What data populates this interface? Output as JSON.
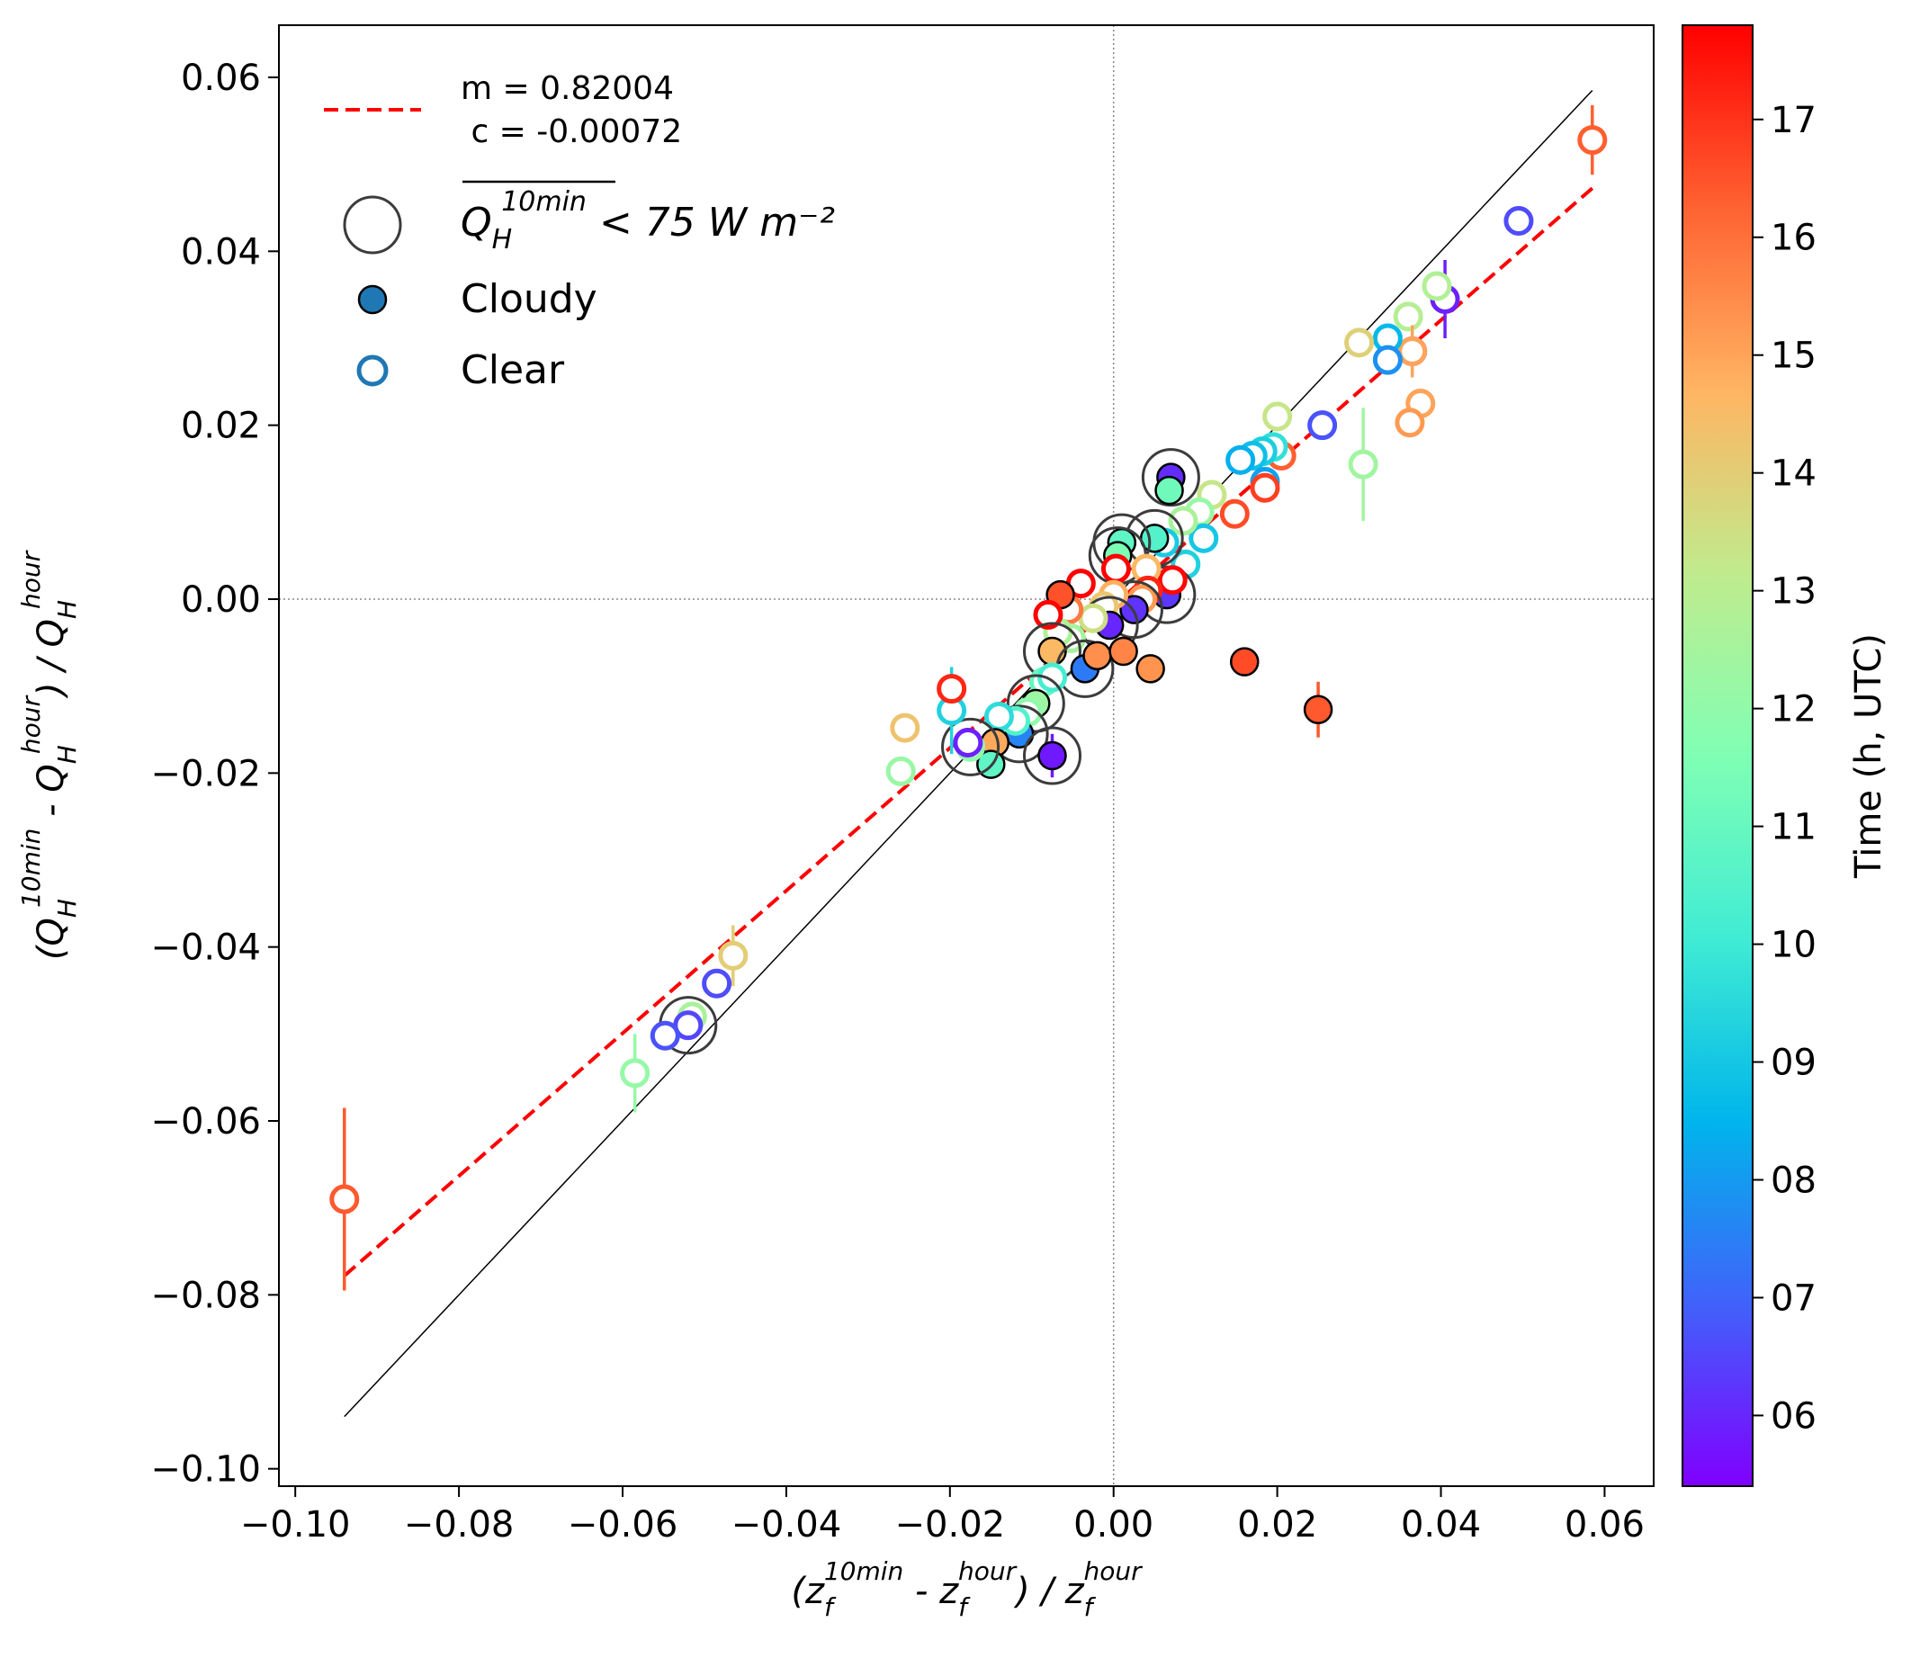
{
  "chart_data": {
    "type": "scatter",
    "xlabel": "(z_f^10min - z_f^hour) / z_f^hour",
    "ylabel": "(Q_H^10min - Q_H^hour) / Q_H^hour",
    "xlabel_parts": {
      "open": "(z",
      "sub": "f",
      "sup": "10min",
      "mid": " - z",
      "sub2": "f",
      "sup2": "hour",
      "close": ") / z",
      "sub3": "f",
      "sup3": "hour"
    },
    "ylabel_parts": {
      "open": "(Q",
      "sub": "H",
      "sup": "10min",
      "mid": " - Q",
      "sub2": "H",
      "sup2": "hour",
      "close": ") / Q",
      "sub3": "H",
      "sup3": "hour"
    },
    "xlim": [
      -0.102,
      0.066
    ],
    "ylim": [
      -0.102,
      0.066
    ],
    "xticks": [
      -0.1,
      -0.08,
      -0.06,
      -0.04,
      -0.02,
      0.0,
      0.02,
      0.04,
      0.06
    ],
    "yticks": [
      -0.1,
      -0.08,
      -0.06,
      -0.04,
      -0.02,
      0.0,
      0.02,
      0.04,
      0.06
    ],
    "xtick_labels": [
      "−0.10",
      "−0.08",
      "−0.06",
      "−0.04",
      "−0.02",
      "0.00",
      "0.02",
      "0.04",
      "0.06"
    ],
    "ytick_labels": [
      "−0.10",
      "−0.08",
      "−0.06",
      "−0.04",
      "−0.02",
      "0.00",
      "0.02",
      "0.04",
      "0.06"
    ],
    "fit": {
      "m": 0.82004,
      "c": -0.00072,
      "x_range": [
        -0.094,
        0.0585
      ],
      "color": "#ff0000"
    },
    "one_to_one": {
      "x_range": [
        -0.094,
        0.0585
      ],
      "color": "#000000"
    },
    "zero_lines": true,
    "legend": {
      "placement": "top-left",
      "fit_label_line1": "m = 0.82004",
      "fit_label_line2": " c = -0.00072",
      "low_flux_label": "< 75 W m⁻²",
      "low_flux_symbol": "Q",
      "low_flux_sub": "H",
      "low_flux_sup": "10min",
      "cloudy_label": "Cloudy",
      "clear_label": "Clear"
    },
    "colorbar": {
      "label": "Time (h, UTC)",
      "range": [
        5.4,
        17.8
      ],
      "ticks": [
        6,
        7,
        8,
        9,
        10,
        11,
        12,
        13,
        14,
        15,
        16,
        17
      ],
      "tick_labels": [
        "06",
        "07",
        "08",
        "09",
        "10",
        "11",
        "12",
        "13",
        "14",
        "15",
        "16",
        "17"
      ],
      "colormap": "rainbow"
    },
    "points": [
      {
        "x": -0.094,
        "y": -0.069,
        "t": 16.4,
        "cloudy": false,
        "err": 0.0105,
        "low": false
      },
      {
        "x": 0.0585,
        "y": 0.0528,
        "t": 16.3,
        "cloudy": false,
        "err": 0.004,
        "low": false
      },
      {
        "x": 0.0495,
        "y": 0.0435,
        "t": 6.6,
        "cloudy": false,
        "err": 0,
        "low": false
      },
      {
        "x": 0.0405,
        "y": 0.0345,
        "t": 5.9,
        "cloudy": false,
        "err": 0.0045,
        "low": false
      },
      {
        "x": 0.0395,
        "y": 0.036,
        "t": 12.8,
        "cloudy": false,
        "err": 0,
        "low": false
      },
      {
        "x": 0.036,
        "y": 0.0325,
        "t": 12.9,
        "cloudy": false,
        "err": 0,
        "low": false
      },
      {
        "x": 0.0365,
        "y": 0.0285,
        "t": 5.8,
        "cloudy": false,
        "err": 0,
        "low": false
      },
      {
        "x": 0.0365,
        "y": 0.0285,
        "t": 15.0,
        "cloudy": false,
        "err": 0.003,
        "low": false
      },
      {
        "x": 0.0335,
        "y": 0.03,
        "t": 8.6,
        "cloudy": false,
        "err": 0,
        "low": false
      },
      {
        "x": 0.0335,
        "y": 0.0275,
        "t": 7.8,
        "cloudy": false,
        "err": 0,
        "low": false
      },
      {
        "x": 0.03,
        "y": 0.0295,
        "t": 13.9,
        "cloudy": false,
        "err": 0,
        "low": false
      },
      {
        "x": 0.0375,
        "y": 0.0225,
        "t": 15.0,
        "cloudy": false,
        "err": 0,
        "low": false
      },
      {
        "x": 0.0362,
        "y": 0.0203,
        "t": 15.2,
        "cloudy": false,
        "err": 0,
        "low": false
      },
      {
        "x": 0.0255,
        "y": 0.02,
        "t": 6.7,
        "cloudy": false,
        "err": 0,
        "low": false
      },
      {
        "x": 0.02,
        "y": 0.021,
        "t": 13.3,
        "cloudy": false,
        "err": 0,
        "low": false
      },
      {
        "x": 0.0305,
        "y": 0.0155,
        "t": 12.4,
        "cloudy": false,
        "err": 0.0065,
        "low": false
      },
      {
        "x": 0.0205,
        "y": 0.0165,
        "t": 16.3,
        "cloudy": false,
        "err": 0,
        "low": false
      },
      {
        "x": 0.0195,
        "y": 0.0175,
        "t": 9.7,
        "cloudy": false,
        "err": 0,
        "low": false
      },
      {
        "x": 0.0182,
        "y": 0.017,
        "t": 9.2,
        "cloudy": false,
        "err": 0,
        "low": false
      },
      {
        "x": 0.017,
        "y": 0.0165,
        "t": 8.8,
        "cloudy": false,
        "err": 0,
        "low": false
      },
      {
        "x": 0.0155,
        "y": 0.016,
        "t": 8.4,
        "cloudy": false,
        "err": 0,
        "low": false
      },
      {
        "x": 0.0185,
        "y": 0.0135,
        "t": 8.1,
        "cloudy": false,
        "err": 0,
        "low": false
      },
      {
        "x": 0.0185,
        "y": 0.0128,
        "t": 16.8,
        "cloudy": false,
        "err": 0,
        "low": false
      },
      {
        "x": 0.0148,
        "y": 0.0098,
        "t": 16.6,
        "cloudy": false,
        "err": 0,
        "low": false
      },
      {
        "x": 0.012,
        "y": 0.012,
        "t": 13.3,
        "cloudy": false,
        "err": 0,
        "low": false
      },
      {
        "x": 0.0105,
        "y": 0.01,
        "t": 12.2,
        "cloudy": false,
        "err": 0,
        "low": false
      },
      {
        "x": 0.011,
        "y": 0.007,
        "t": 9.0,
        "cloudy": false,
        "err": 0,
        "low": false
      },
      {
        "x": 0.0085,
        "y": 0.009,
        "t": 12.6,
        "cloudy": false,
        "err": 0,
        "low": false
      },
      {
        "x": 0.0088,
        "y": 0.004,
        "t": 9.3,
        "cloudy": false,
        "err": 0,
        "low": false
      },
      {
        "x": 0.007,
        "y": 0.014,
        "t": 6.1,
        "cloudy": true,
        "err": 0,
        "low": true
      },
      {
        "x": 0.0068,
        "y": 0.0125,
        "t": 11.2,
        "cloudy": true,
        "err": 0,
        "low": false
      },
      {
        "x": 0.0062,
        "y": 0.0065,
        "t": 9.1,
        "cloudy": false,
        "err": 0,
        "low": false
      },
      {
        "x": 0.005,
        "y": 0.007,
        "t": 10.5,
        "cloudy": true,
        "err": 0,
        "low": true
      },
      {
        "x": 0.001,
        "y": 0.0065,
        "t": 10.8,
        "cloudy": true,
        "err": 0,
        "low": true
      },
      {
        "x": 0.0005,
        "y": 0.005,
        "t": 11.5,
        "cloudy": true,
        "err": 0,
        "low": true
      },
      {
        "x": 0.0065,
        "y": 0.0005,
        "t": 6.3,
        "cloudy": true,
        "err": 0,
        "low": true
      },
      {
        "x": 0.0072,
        "y": 0.0022,
        "t": 17.7,
        "cloudy": false,
        "err": 0,
        "low": false
      },
      {
        "x": 0.004,
        "y": 0.0035,
        "t": 14.6,
        "cloudy": false,
        "err": 0,
        "low": false
      },
      {
        "x": 0.0042,
        "y": 0.001,
        "t": 17.2,
        "cloudy": false,
        "err": 0,
        "low": false
      },
      {
        "x": 0.0035,
        "y": 0.0,
        "t": 15.2,
        "cloudy": false,
        "err": 0,
        "low": false
      },
      {
        "x": 0.0025,
        "y": -0.0012,
        "t": 6.2,
        "cloudy": true,
        "err": 0,
        "low": true
      },
      {
        "x": 0.0003,
        "y": 0.0035,
        "t": 17.8,
        "cloudy": false,
        "err": 0,
        "low": false
      },
      {
        "x": 0.0,
        "y": 0.0005,
        "t": 14.8,
        "cloudy": false,
        "err": 0,
        "low": false
      },
      {
        "x": -0.0012,
        "y": -0.0008,
        "t": 14.2,
        "cloudy": false,
        "err": 0,
        "low": false
      },
      {
        "x": -0.0005,
        "y": -0.003,
        "t": 6.0,
        "cloudy": true,
        "err": 0,
        "low": true
      },
      {
        "x": -0.0025,
        "y": -0.0022,
        "t": 13.5,
        "cloudy": false,
        "err": 0,
        "low": false
      },
      {
        "x": -0.004,
        "y": 0.0018,
        "t": 17.8,
        "cloudy": false,
        "err": 0,
        "low": false
      },
      {
        "x": -0.0055,
        "y": -0.0012,
        "t": 15.8,
        "cloudy": false,
        "err": 0,
        "low": false
      },
      {
        "x": -0.0065,
        "y": 0.0005,
        "t": 16.5,
        "cloudy": true,
        "err": 0,
        "low": false
      },
      {
        "x": -0.0052,
        "y": -0.0045,
        "t": 12.5,
        "cloudy": false,
        "err": 0,
        "low": false
      },
      {
        "x": -0.0068,
        "y": -0.0038,
        "t": 12.7,
        "cloudy": false,
        "err": 0,
        "low": false
      },
      {
        "x": -0.008,
        "y": -0.0018,
        "t": 17.8,
        "cloudy": false,
        "err": 0,
        "low": false
      },
      {
        "x": -0.0075,
        "y": -0.006,
        "t": 14.6,
        "cloudy": true,
        "err": 0,
        "low": true
      },
      {
        "x": -0.0035,
        "y": -0.008,
        "t": 7.4,
        "cloudy": true,
        "err": 0,
        "low": true
      },
      {
        "x": -0.002,
        "y": -0.0065,
        "t": 15.4,
        "cloudy": true,
        "err": 0,
        "low": false
      },
      {
        "x": 0.0012,
        "y": -0.006,
        "t": 15.6,
        "cloudy": true,
        "err": 0,
        "low": false
      },
      {
        "x": 0.0045,
        "y": -0.008,
        "t": 15.3,
        "cloudy": true,
        "err": 0,
        "low": false
      },
      {
        "x": -0.0085,
        "y": -0.0095,
        "t": 11.0,
        "cloudy": false,
        "err": 0,
        "low": false
      },
      {
        "x": -0.0075,
        "y": -0.009,
        "t": 10.2,
        "cloudy": false,
        "err": 0,
        "low": false
      },
      {
        "x": -0.0095,
        "y": -0.012,
        "t": 12.3,
        "cloudy": true,
        "err": 0,
        "low": true
      },
      {
        "x": -0.0105,
        "y": -0.013,
        "t": 12.0,
        "cloudy": false,
        "err": 0,
        "low": false
      },
      {
        "x": -0.0115,
        "y": -0.0155,
        "t": 7.6,
        "cloudy": true,
        "err": 0,
        "low": true
      },
      {
        "x": -0.012,
        "y": -0.014,
        "t": 10.5,
        "cloudy": false,
        "err": 0,
        "low": false
      },
      {
        "x": -0.014,
        "y": -0.0135,
        "t": 9.6,
        "cloudy": false,
        "err": 0,
        "low": false
      },
      {
        "x": -0.0145,
        "y": -0.0165,
        "t": 14.9,
        "cloudy": true,
        "err": 0,
        "low": false
      },
      {
        "x": -0.015,
        "y": -0.019,
        "t": 10.8,
        "cloudy": true,
        "err": 0,
        "low": false
      },
      {
        "x": -0.0175,
        "y": -0.017,
        "t": 12.0,
        "cloudy": false,
        "err": 0,
        "low": true
      },
      {
        "x": -0.0178,
        "y": -0.0165,
        "t": 5.9,
        "cloudy": false,
        "err": 0,
        "low": false
      },
      {
        "x": -0.0075,
        "y": -0.018,
        "t": 5.8,
        "cloudy": true,
        "err": 0.0025,
        "low": true
      },
      {
        "x": -0.0198,
        "y": -0.0128,
        "t": 9.3,
        "cloudy": false,
        "err": 0.005,
        "low": false
      },
      {
        "x": -0.0198,
        "y": -0.0103,
        "t": 17.2,
        "cloudy": false,
        "err": 0,
        "low": false
      },
      {
        "x": -0.0255,
        "y": -0.0148,
        "t": 14.3,
        "cloudy": false,
        "err": 0,
        "low": false
      },
      {
        "x": -0.026,
        "y": -0.0198,
        "t": 12.2,
        "cloudy": false,
        "err": 0,
        "low": false
      },
      {
        "x": -0.0465,
        "y": -0.041,
        "t": 14.0,
        "cloudy": false,
        "err": 0.0035,
        "low": false
      },
      {
        "x": -0.0485,
        "y": -0.0442,
        "t": 6.6,
        "cloudy": false,
        "err": 0,
        "low": false
      },
      {
        "x": -0.0515,
        "y": -0.048,
        "t": 12.6,
        "cloudy": false,
        "err": 0,
        "low": false
      },
      {
        "x": -0.052,
        "y": -0.049,
        "t": 6.5,
        "cloudy": false,
        "err": 0,
        "low": true
      },
      {
        "x": -0.0548,
        "y": -0.0502,
        "t": 6.7,
        "cloudy": false,
        "err": 0,
        "low": false
      },
      {
        "x": -0.0585,
        "y": -0.0545,
        "t": 12.1,
        "cloudy": false,
        "err": 0.0045,
        "low": false
      },
      {
        "x": 0.016,
        "y": -0.0072,
        "t": 16.6,
        "cloudy": true,
        "err": 0,
        "low": false
      },
      {
        "x": 0.025,
        "y": -0.0127,
        "t": 16.4,
        "cloudy": true,
        "err": 0.0032,
        "low": false
      }
    ]
  }
}
